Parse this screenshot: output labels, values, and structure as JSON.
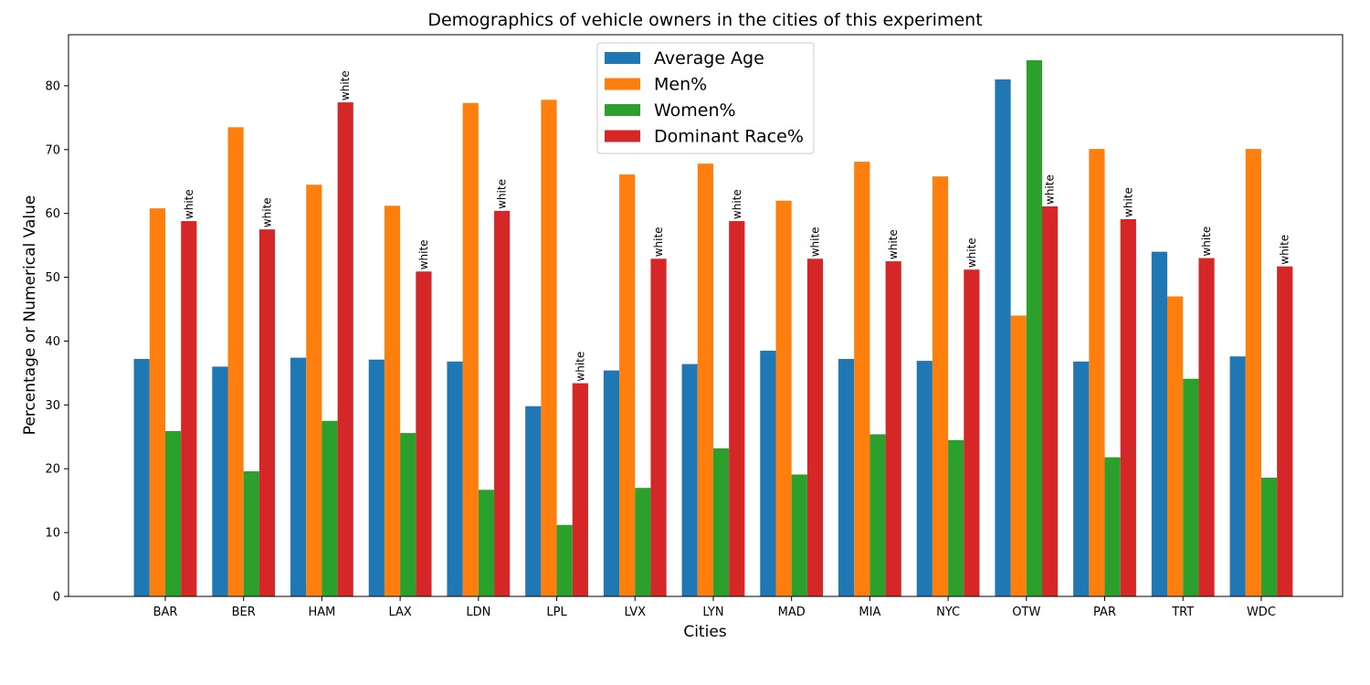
{
  "chart_data": {
    "type": "bar",
    "title": "Demographics of vehicle owners in the cities of this experiment",
    "xlabel": "Cities",
    "ylabel": "Percentage or Numerical Value",
    "ylim": [
      0,
      88
    ],
    "yticks": [
      "0",
      "10",
      "20",
      "30",
      "40",
      "50",
      "60",
      "70",
      "80"
    ],
    "grid": false,
    "legend_position": "top-center",
    "categories": [
      "BAR",
      "BER",
      "HAM",
      "LAX",
      "LDN",
      "LPL",
      "LVX",
      "LYN",
      "MAD",
      "MIA",
      "NYC",
      "OTW",
      "PAR",
      "TRT",
      "WDC"
    ],
    "series": [
      {
        "name": "Average Age",
        "color": "#1f77b4",
        "values": [
          37.2,
          36.0,
          37.4,
          37.1,
          36.8,
          29.8,
          35.4,
          36.4,
          38.5,
          37.2,
          36.9,
          81.0,
          36.8,
          54.0,
          37.6
        ]
      },
      {
        "name": "Men%",
        "color": "#ff7f0e",
        "values": [
          60.8,
          73.5,
          64.5,
          61.2,
          77.3,
          77.8,
          66.1,
          67.8,
          62.0,
          68.1,
          65.8,
          44.0,
          70.1,
          47.0,
          70.1
        ]
      },
      {
        "name": "Women%",
        "color": "#2ca02c",
        "values": [
          25.9,
          19.6,
          27.5,
          25.6,
          16.7,
          11.2,
          17.0,
          23.2,
          19.1,
          25.4,
          24.5,
          84.0,
          21.8,
          34.1,
          18.6
        ]
      },
      {
        "name": "Dominant Race%",
        "color": "#d62728",
        "values": [
          58.8,
          57.5,
          77.4,
          50.9,
          60.4,
          33.4,
          52.9,
          58.8,
          52.9,
          52.5,
          51.2,
          61.1,
          59.1,
          53.0,
          51.7
        ],
        "labels": [
          "white",
          "white",
          "white",
          "white",
          "white",
          "white",
          "white",
          "white",
          "white",
          "white",
          "white",
          "white",
          "white",
          "white",
          "white"
        ]
      }
    ]
  }
}
